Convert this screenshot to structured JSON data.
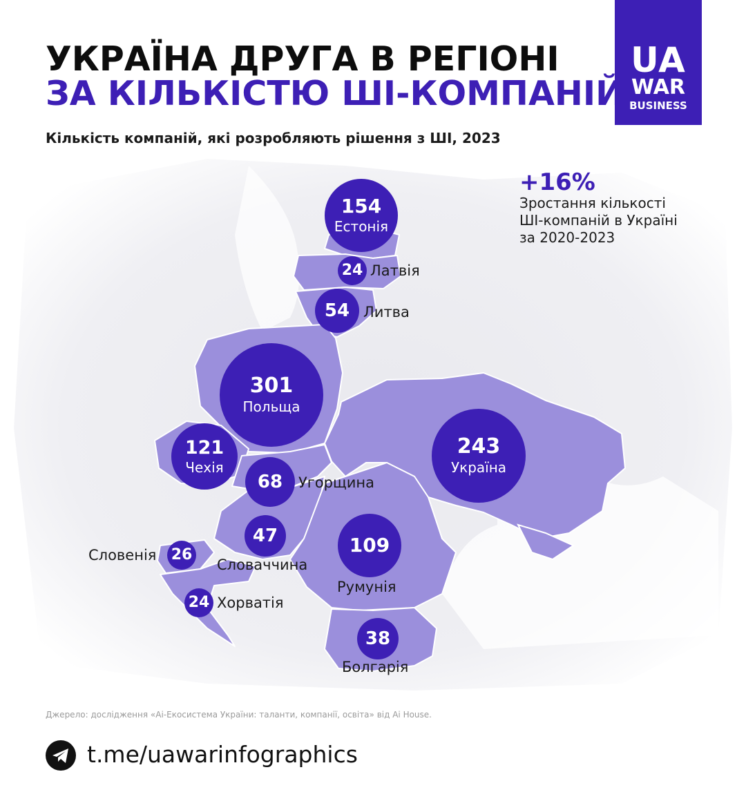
{
  "header": {
    "title_line_1": "УКРАЇНА ДРУГА В РЕГІОНІ",
    "title_line_2": "ЗА КІЛЬКІСТЮ ШІ-КОМПАНІЙ",
    "subtitle": "Кількість компаній, які розробляють рішення з ШІ, 2023"
  },
  "logo": {
    "line_1": "UA",
    "line_2": "WAR",
    "line_3": "BUSINESS"
  },
  "highlight": {
    "value": "+16%",
    "description_lines": [
      "Зростання кількості",
      "ШІ-компаній в Україні",
      "за 2020-2023"
    ]
  },
  "countries": [
    {
      "id": "estonia",
      "name": "Естонія",
      "value": 154
    },
    {
      "id": "latvia",
      "name": "Латвія",
      "value": 24
    },
    {
      "id": "lithuania",
      "name": "Литва",
      "value": 54
    },
    {
      "id": "poland",
      "name": "Польща",
      "value": 301
    },
    {
      "id": "czechia",
      "name": "Чехія",
      "value": 121
    },
    {
      "id": "hungary",
      "name": "Угорщина",
      "value": 68
    },
    {
      "id": "ukraine",
      "name": "Україна",
      "value": 243
    },
    {
      "id": "slovakia",
      "name": "Словаччина",
      "value": 47
    },
    {
      "id": "slovenia",
      "name": "Словенія",
      "value": 26
    },
    {
      "id": "romania",
      "name": "Румунія",
      "value": 109
    },
    {
      "id": "croatia",
      "name": "Хорватія",
      "value": 24
    },
    {
      "id": "bulgaria",
      "name": "Болгарія",
      "value": 38
    }
  ],
  "source": "Джерело: дослідження «Аі-Екосистема України: таланти, компанії, освіта» від Аі House.",
  "footer": {
    "link": "t.me/uawarinfographics",
    "icon": "telegram-icon"
  },
  "colors": {
    "accent": "#3d1fb5",
    "region_fill": "#9b8fdc",
    "land": "#ececf1",
    "title": "#0d0d0d"
  }
}
